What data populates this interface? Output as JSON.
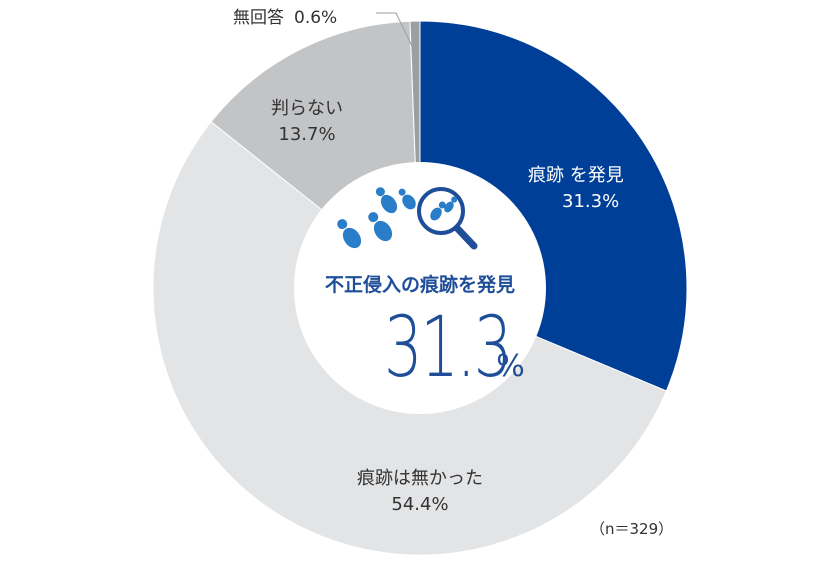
{
  "chart_data": {
    "type": "pie",
    "slices": [
      {
        "label": "痕跡 を発見",
        "value": 31.3,
        "value_label": "31.3%",
        "color": "#003f98"
      },
      {
        "label": "痕跡は無かった",
        "value": 54.4,
        "value_label": "54.4%",
        "color": "#e3e4e6"
      },
      {
        "label": "判らない",
        "value": 13.7,
        "value_label": "13.7%",
        "color": "#c3c4c6"
      },
      {
        "label": "無回答",
        "value": 0.6,
        "value_label": "0.6%",
        "color": "#9d9ea0"
      }
    ],
    "center_title": "不正侵入の痕跡を発見",
    "center_value": "31.3",
    "center_unit": "%",
    "note": "（n＝329）"
  },
  "colors": {
    "accent": "#1f4e99",
    "center_bg": "#ffffff"
  },
  "icons": [
    "footprints-icon",
    "magnifier-footprint-icon"
  ]
}
